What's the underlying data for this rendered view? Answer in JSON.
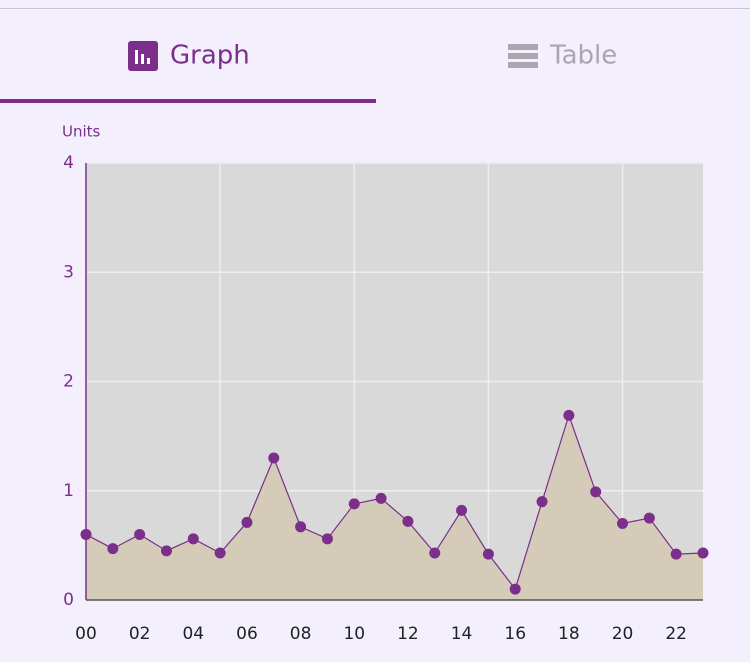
{
  "tabs": [
    {
      "label": "Graph",
      "active": true
    },
    {
      "label": "Table",
      "active": false
    }
  ],
  "chart_data": {
    "type": "line",
    "y_label": "Units",
    "x": [
      0,
      1,
      2,
      3,
      4,
      5,
      6,
      7,
      8,
      9,
      10,
      11,
      12,
      13,
      14,
      15,
      16,
      17,
      18,
      19,
      20,
      21,
      22,
      23
    ],
    "values": [
      0.6,
      0.47,
      0.6,
      0.45,
      0.56,
      0.43,
      0.71,
      1.3,
      0.67,
      0.56,
      0.88,
      0.93,
      0.72,
      0.43,
      0.82,
      0.42,
      0.1,
      0.9,
      1.69,
      0.99,
      0.7,
      0.75,
      0.42,
      0.43
    ],
    "color": "#7b2f8b",
    "area_color": "#d4ccb8",
    "plot_background": "#d9d9d9",
    "xlim": [
      0,
      23
    ],
    "ylim": [
      0,
      4
    ],
    "xticks": [
      {
        "value": 0,
        "label": "00"
      },
      {
        "value": 2,
        "label": "02"
      },
      {
        "value": 4,
        "label": "04"
      },
      {
        "value": 6,
        "label": "06"
      },
      {
        "value": 8,
        "label": "08"
      },
      {
        "value": 10,
        "label": "10"
      },
      {
        "value": 12,
        "label": "12"
      },
      {
        "value": 14,
        "label": "14"
      },
      {
        "value": 16,
        "label": "16"
      },
      {
        "value": 18,
        "label": "18"
      },
      {
        "value": 20,
        "label": "20"
      },
      {
        "value": 22,
        "label": "22"
      }
    ],
    "xgrid": [
      5,
      10,
      15,
      20
    ],
    "yticks": [
      0,
      1,
      2,
      3,
      4
    ],
    "grid": true
  }
}
